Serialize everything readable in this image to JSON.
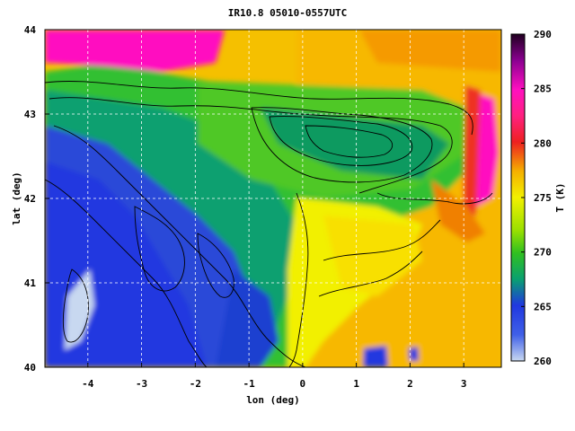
{
  "title": "IR10.8 05010-0557UTC",
  "map": {
    "xlabel": "lon (deg)",
    "ylabel": "lat (deg)",
    "xlim": [
      -4.8,
      3.7
    ],
    "ylim": [
      40,
      44
    ],
    "xticks": [
      "-4",
      "-3",
      "-2",
      "-1",
      "0",
      "1",
      "2",
      "3"
    ],
    "xtick_values": [
      -4,
      -3,
      -2,
      -1,
      0,
      1,
      2,
      3
    ],
    "yticks": [
      "40",
      "41",
      "42",
      "43",
      "44"
    ],
    "ytick_values": [
      40,
      41,
      42,
      43,
      44
    ],
    "grid": true,
    "contours": "topography (black lines)"
  },
  "colorbar": {
    "label": "T (K)",
    "range": [
      260,
      290
    ],
    "ticks": [
      "260",
      "265",
      "270",
      "275",
      "280",
      "285",
      "290"
    ],
    "colors": [
      "#c8d8f0",
      "#2038e0",
      "#0a9a50",
      "#6ee000",
      "#f2f000",
      "#f5a000",
      "#ee2020",
      "#ff10b0",
      "#7a0090",
      "#200020"
    ]
  }
}
